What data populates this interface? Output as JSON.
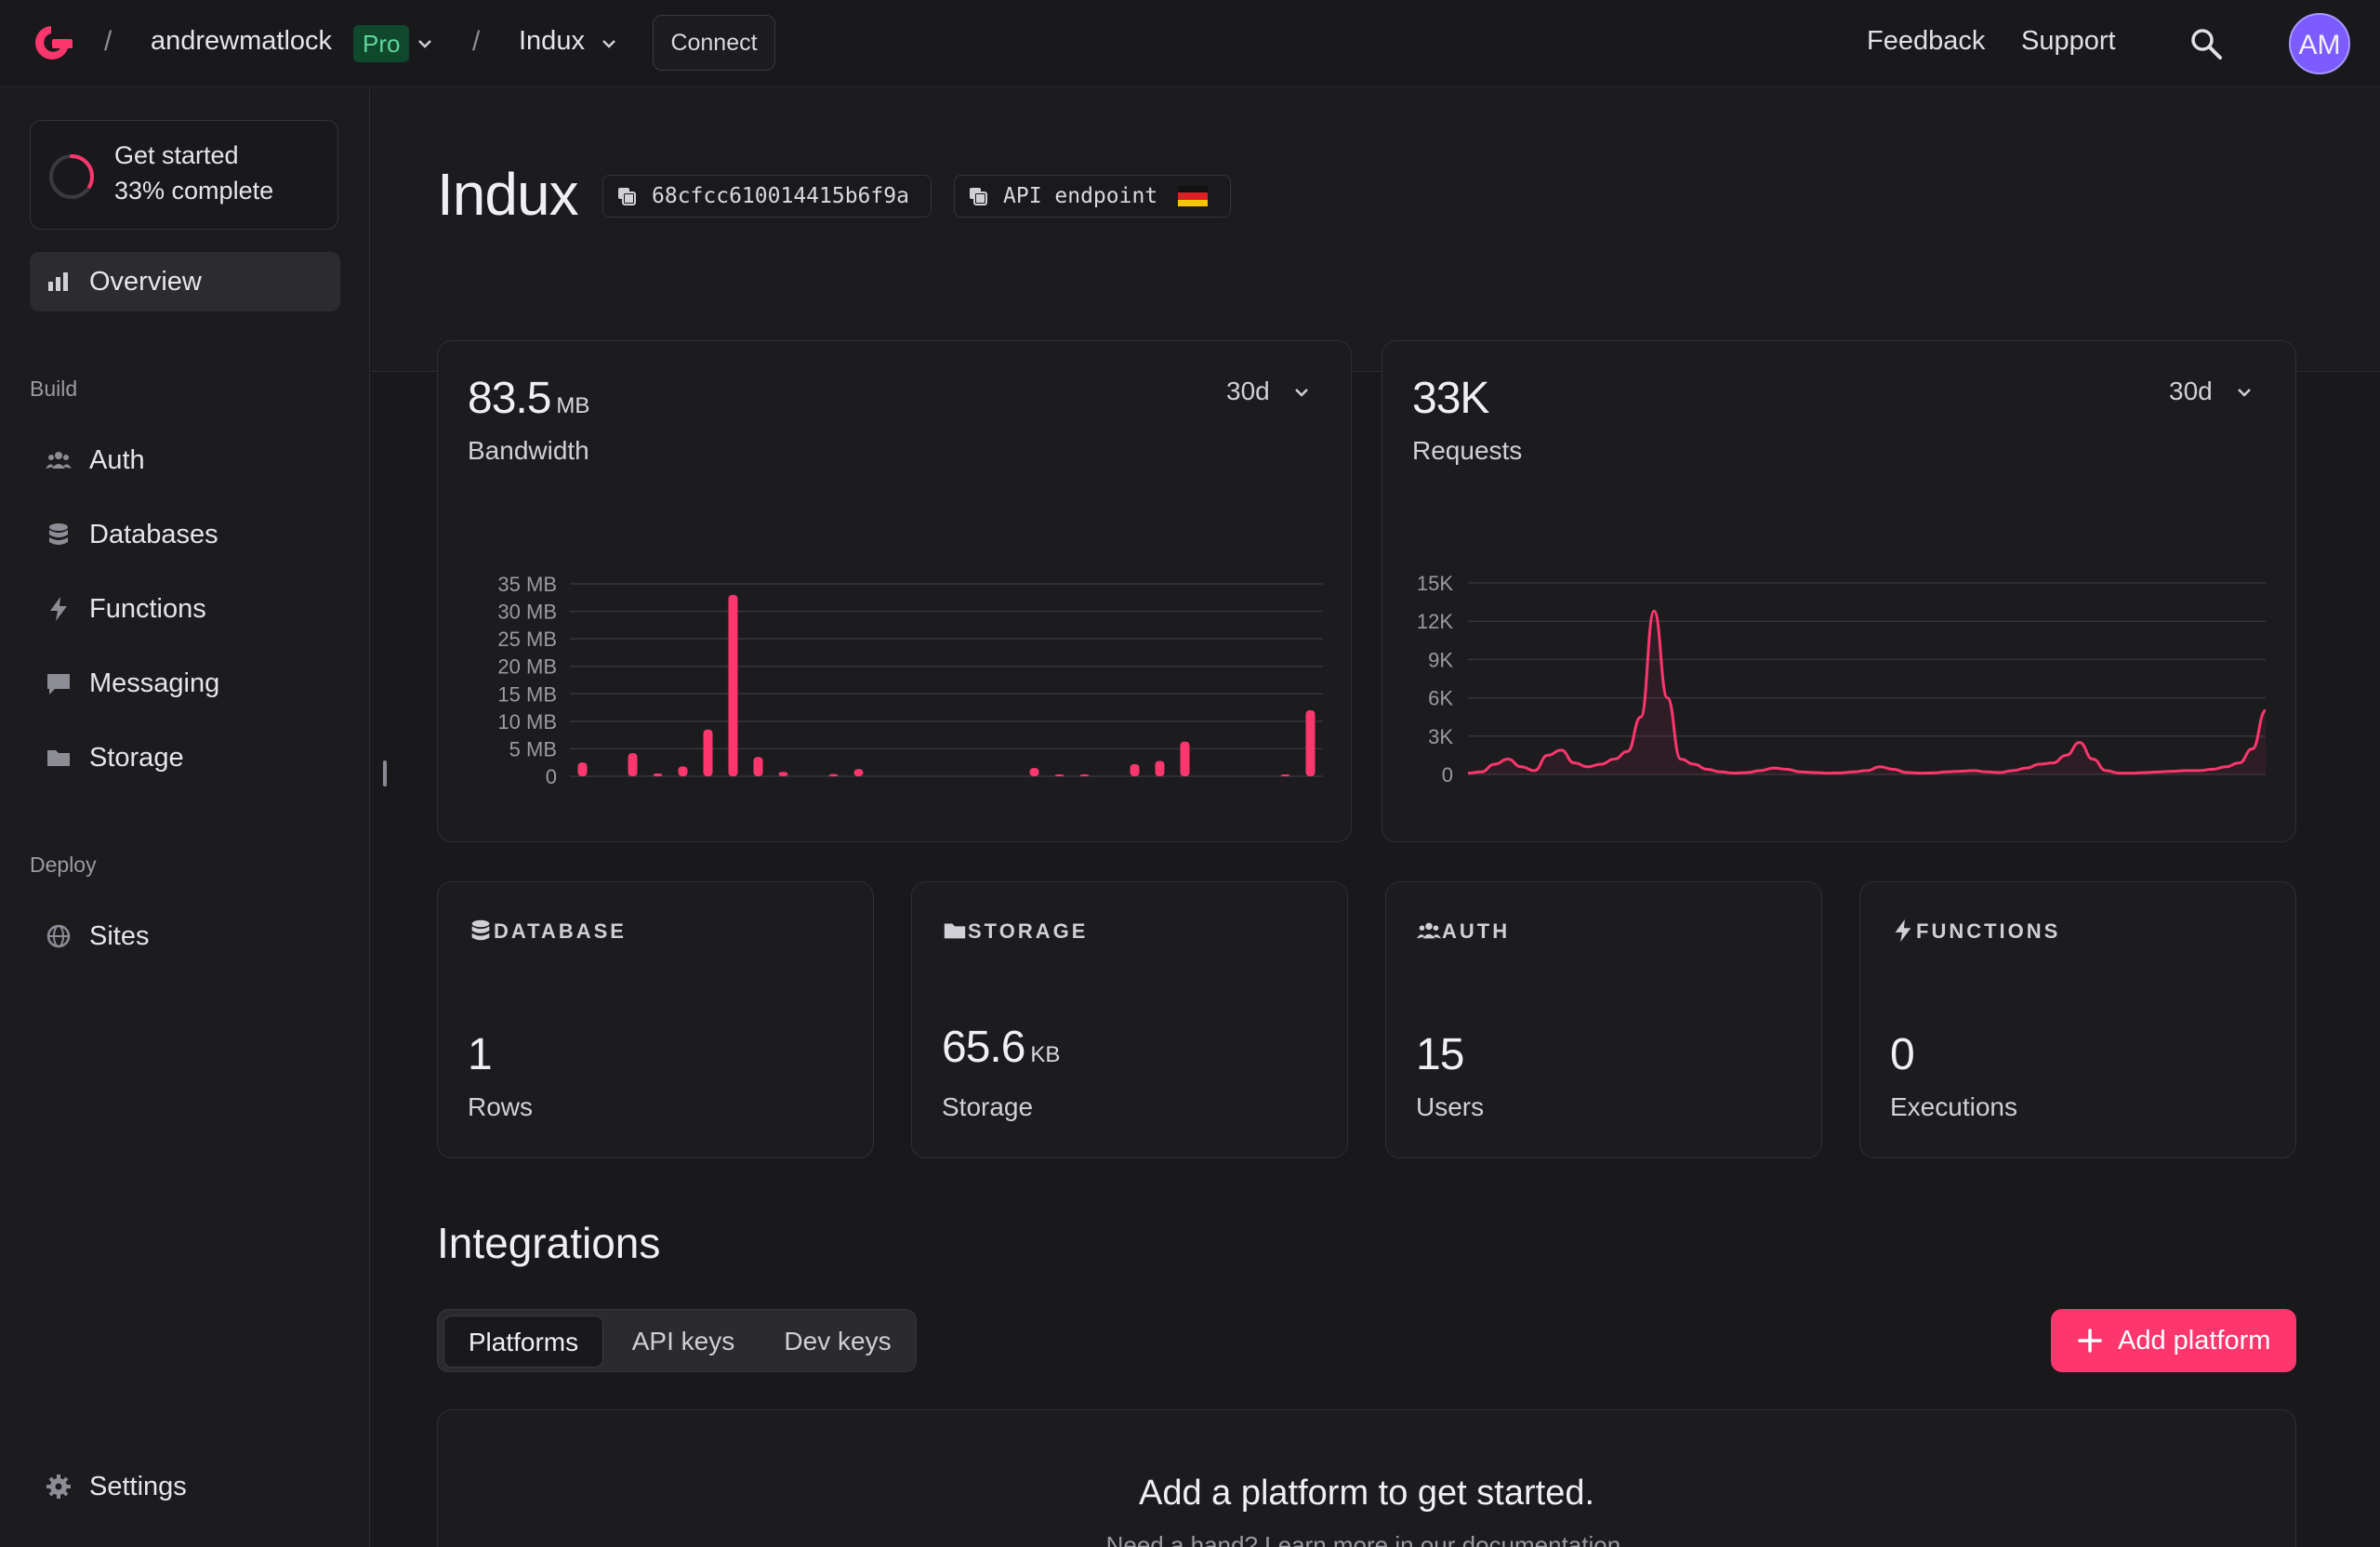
{
  "topbar": {
    "org_name": "andrewmatlock",
    "plan_badge": "Pro",
    "project_name": "Indux",
    "connect_label": "Connect",
    "feedback_label": "Feedback",
    "support_label": "Support",
    "avatar_initials": "AM",
    "separator": "/"
  },
  "sidebar": {
    "get_started": {
      "title": "Get started",
      "progress_text": "33% complete",
      "progress": 0.33
    },
    "overview_label": "Overview",
    "build_label": "Build",
    "build_items": [
      {
        "label": "Auth",
        "icon": "users-icon"
      },
      {
        "label": "Databases",
        "icon": "database-icon"
      },
      {
        "label": "Functions",
        "icon": "lightning-icon"
      },
      {
        "label": "Messaging",
        "icon": "chat-icon"
      },
      {
        "label": "Storage",
        "icon": "folder-icon"
      }
    ],
    "deploy_label": "Deploy",
    "deploy_items": [
      {
        "label": "Sites",
        "icon": "globe-icon"
      }
    ],
    "settings_label": "Settings"
  },
  "header": {
    "project_title": "Indux",
    "project_id": "68cfcc610014415b6f9a",
    "api_endpoint_label": "API endpoint"
  },
  "bandwidth": {
    "value": "83.5",
    "unit": "MB",
    "label": "Bandwidth",
    "range": "30d"
  },
  "requests": {
    "value": "33K",
    "label": "Requests",
    "range": "30d"
  },
  "chart_data": [
    {
      "type": "bar",
      "title": "",
      "yticks": [
        "35 MB",
        "30 MB",
        "25 MB",
        "20 MB",
        "15 MB",
        "10 MB",
        "5 MB",
        "0"
      ],
      "ylim": [
        0,
        35
      ],
      "y_unit": "MB",
      "categories": [
        "1",
        "2",
        "3",
        "4",
        "5",
        "6",
        "7",
        "8",
        "9",
        "10",
        "11",
        "12",
        "13",
        "14",
        "15",
        "16",
        "17",
        "18",
        "19",
        "20",
        "21",
        "22",
        "23",
        "24",
        "25",
        "26",
        "27",
        "28",
        "29",
        "30"
      ],
      "values": [
        2.5,
        0,
        4.2,
        0.5,
        1.8,
        8.5,
        33,
        3.5,
        0.8,
        0,
        0.4,
        1.3,
        0,
        0,
        0,
        0,
        0,
        0,
        1.5,
        0.2,
        0.2,
        0,
        2.2,
        2.8,
        6.3,
        0,
        0,
        0,
        0.2,
        12
      ]
    },
    {
      "type": "line",
      "title": "",
      "yticks": [
        "15K",
        "12K",
        "9K",
        "6K",
        "3K",
        "0"
      ],
      "ylim": [
        0,
        15000
      ],
      "x": [
        0,
        1,
        2,
        3,
        4,
        5,
        6,
        7,
        8,
        9,
        10,
        11,
        12,
        13,
        14,
        15,
        16,
        17,
        18,
        19,
        20,
        21,
        22,
        23,
        24,
        25,
        26,
        27,
        28,
        29,
        30,
        31,
        32,
        33,
        34,
        35,
        36,
        37,
        38,
        39,
        40,
        41,
        42,
        43,
        44,
        45,
        46,
        47,
        48,
        49,
        50,
        51,
        52,
        53,
        54,
        55,
        56,
        57,
        58,
        59,
        60
      ],
      "values": [
        100,
        200,
        800,
        1200,
        600,
        300,
        1500,
        1900,
        900,
        600,
        800,
        1200,
        1800,
        4500,
        12800,
        6000,
        1200,
        800,
        400,
        200,
        100,
        150,
        300,
        500,
        400,
        200,
        150,
        100,
        120,
        200,
        300,
        600,
        400,
        150,
        100,
        120,
        200,
        250,
        300,
        200,
        150,
        300,
        500,
        800,
        900,
        1500,
        2500,
        1200,
        300,
        100,
        100,
        150,
        200,
        250,
        300,
        300,
        400,
        600,
        900,
        2000,
        5000
      ]
    }
  ],
  "stats": [
    {
      "title": "DATABASE",
      "value": "1",
      "unit": "",
      "label": "Rows",
      "icon": "database-icon"
    },
    {
      "title": "STORAGE",
      "value": "65.6",
      "unit": "KB",
      "label": "Storage",
      "icon": "folder-icon"
    },
    {
      "title": "AUTH",
      "value": "15",
      "unit": "",
      "label": "Users",
      "icon": "users-icon"
    },
    {
      "title": "FUNCTIONS",
      "value": "0",
      "unit": "",
      "label": "Executions",
      "icon": "lightning-icon"
    }
  ],
  "integrations": {
    "title": "Integrations",
    "tabs": [
      "Platforms",
      "API keys",
      "Dev keys"
    ],
    "add_button": "Add platform",
    "empty_title": "Add a platform to get started.",
    "empty_sub": "Need a hand? Learn more in our documentation."
  },
  "colors": {
    "accent": "#fd366e",
    "background": "#19191c",
    "panel": "#1c1c1f"
  }
}
